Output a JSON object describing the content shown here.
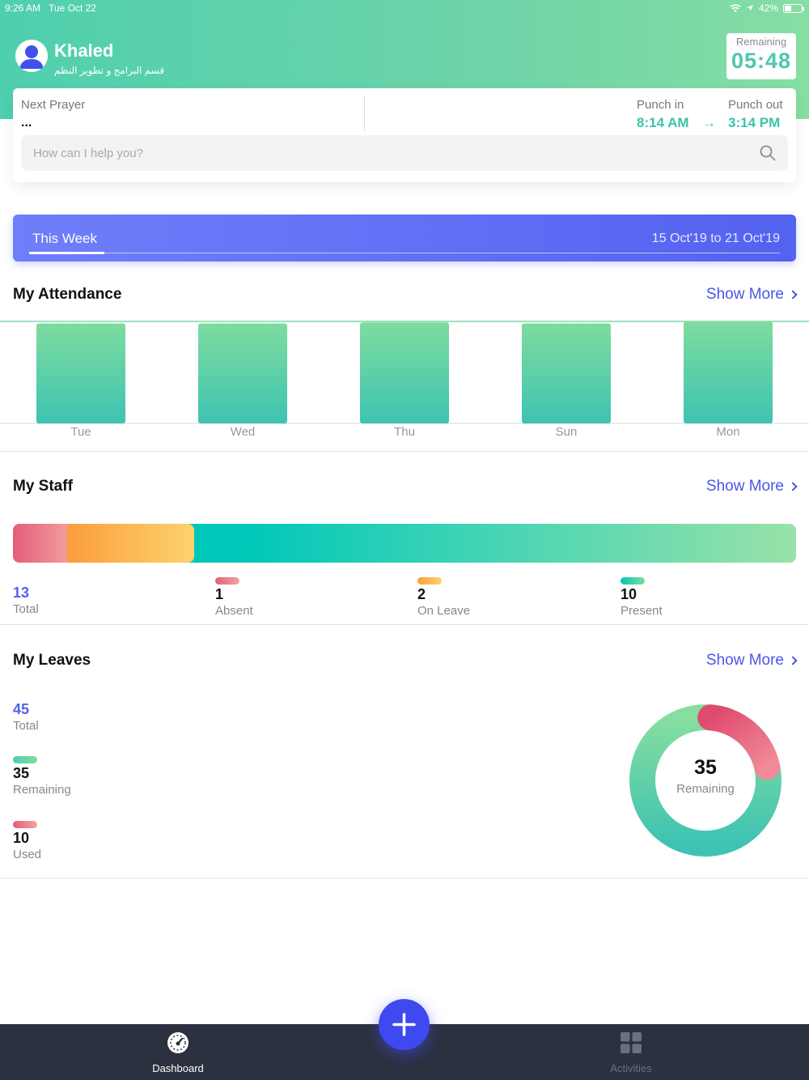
{
  "status_bar": {
    "time": "9:26 AM",
    "date": "Tue Oct 22",
    "battery": "42%"
  },
  "user": {
    "name": "Khaled",
    "department": "قسم البرامج و تطوير النظم"
  },
  "remaining": {
    "label": "Remaining",
    "time": "05:48"
  },
  "prayer": {
    "label": "Next Prayer",
    "value": "..."
  },
  "punch": {
    "in_label": "Punch in",
    "in_time": "8:14 AM",
    "arrow": "→",
    "out_label": "Punch out",
    "out_time": "3:14 PM"
  },
  "search": {
    "placeholder": "How can I help you?"
  },
  "week": {
    "label": "This Week",
    "range": "15 Oct'19 to 21 Oct'19"
  },
  "attendance": {
    "title": "My Attendance",
    "show_more": "Show More"
  },
  "staff": {
    "title": "My Staff",
    "show_more": "Show More",
    "total": {
      "value": "13",
      "label": "Total"
    },
    "absent": {
      "value": "1",
      "label": "Absent"
    },
    "on_leave": {
      "value": "2",
      "label": "On Leave"
    },
    "present": {
      "value": "10",
      "label": "Present"
    }
  },
  "leaves": {
    "title": "My Leaves",
    "show_more": "Show More",
    "total": {
      "value": "45",
      "label": "Total"
    },
    "remaining": {
      "value": "35",
      "label": "Remaining"
    },
    "used": {
      "value": "10",
      "label": "Used"
    },
    "donut_value": "35",
    "donut_label": "Remaining"
  },
  "tabs": {
    "dashboard": "Dashboard",
    "activities": "Activities",
    "active_color": "#ffffff",
    "inactive_color": "#6b7080"
  },
  "colors": {
    "accent": "#4b55e8",
    "teal": "#3dc2a8",
    "absent": "#e35d7a",
    "leave": "#fb9d3e",
    "present": "#00c8b8"
  },
  "chart_data": {
    "type": "bar",
    "categories": [
      "Tue",
      "Wed",
      "Thu",
      "Sun",
      "Mon"
    ],
    "values": [
      99,
      99,
      100,
      99,
      101
    ],
    "ylim": [
      0,
      101
    ],
    "grid": false
  }
}
